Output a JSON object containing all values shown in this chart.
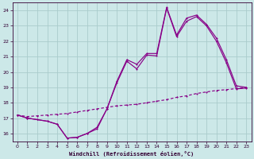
{
  "xlabel": "Windchill (Refroidissement éolien,°C)",
  "background_color": "#cce8e8",
  "grid_color": "#aacccc",
  "line_color": "#880088",
  "xlim": [
    -0.5,
    23.5
  ],
  "ylim": [
    15.5,
    24.5
  ],
  "xticks": [
    0,
    1,
    2,
    3,
    4,
    5,
    6,
    7,
    8,
    9,
    10,
    11,
    12,
    13,
    14,
    15,
    16,
    17,
    18,
    19,
    20,
    21,
    22,
    23
  ],
  "yticks": [
    16,
    17,
    18,
    19,
    20,
    21,
    22,
    23,
    24
  ],
  "line1_x": [
    0,
    1,
    2,
    3,
    4,
    5,
    6,
    7,
    8,
    9,
    10,
    11,
    12,
    13,
    14,
    15,
    16,
    17,
    18,
    19,
    20,
    21,
    22,
    23
  ],
  "line1_y": [
    17.2,
    17.0,
    16.9,
    16.8,
    16.6,
    15.7,
    15.75,
    16.0,
    16.3,
    17.6,
    19.4,
    20.8,
    20.5,
    21.2,
    21.2,
    24.2,
    22.4,
    23.5,
    23.7,
    23.1,
    22.2,
    20.8,
    19.1,
    19.0
  ],
  "line2_x": [
    0,
    1,
    2,
    3,
    4,
    5,
    6,
    7,
    8,
    9,
    10,
    11,
    12,
    13,
    14,
    15,
    16,
    17,
    18,
    19,
    20,
    21,
    22,
    23
  ],
  "line2_y": [
    17.2,
    17.0,
    16.9,
    16.8,
    16.6,
    15.7,
    15.75,
    16.0,
    16.4,
    17.6,
    19.3,
    20.7,
    20.2,
    21.1,
    21.05,
    24.15,
    22.3,
    23.3,
    23.6,
    23.0,
    22.0,
    20.6,
    18.9,
    18.95
  ],
  "line3_x": [
    0,
    1,
    2,
    3,
    4,
    5,
    6,
    7,
    8,
    9,
    10,
    11,
    12,
    13,
    14,
    15,
    16,
    17,
    18,
    19,
    20,
    21,
    22,
    23
  ],
  "line3_y": [
    17.2,
    17.1,
    17.15,
    17.2,
    17.25,
    17.3,
    17.4,
    17.5,
    17.6,
    17.7,
    17.8,
    17.85,
    17.9,
    18.0,
    18.1,
    18.2,
    18.35,
    18.45,
    18.6,
    18.7,
    18.8,
    18.85,
    18.92,
    19.0
  ]
}
